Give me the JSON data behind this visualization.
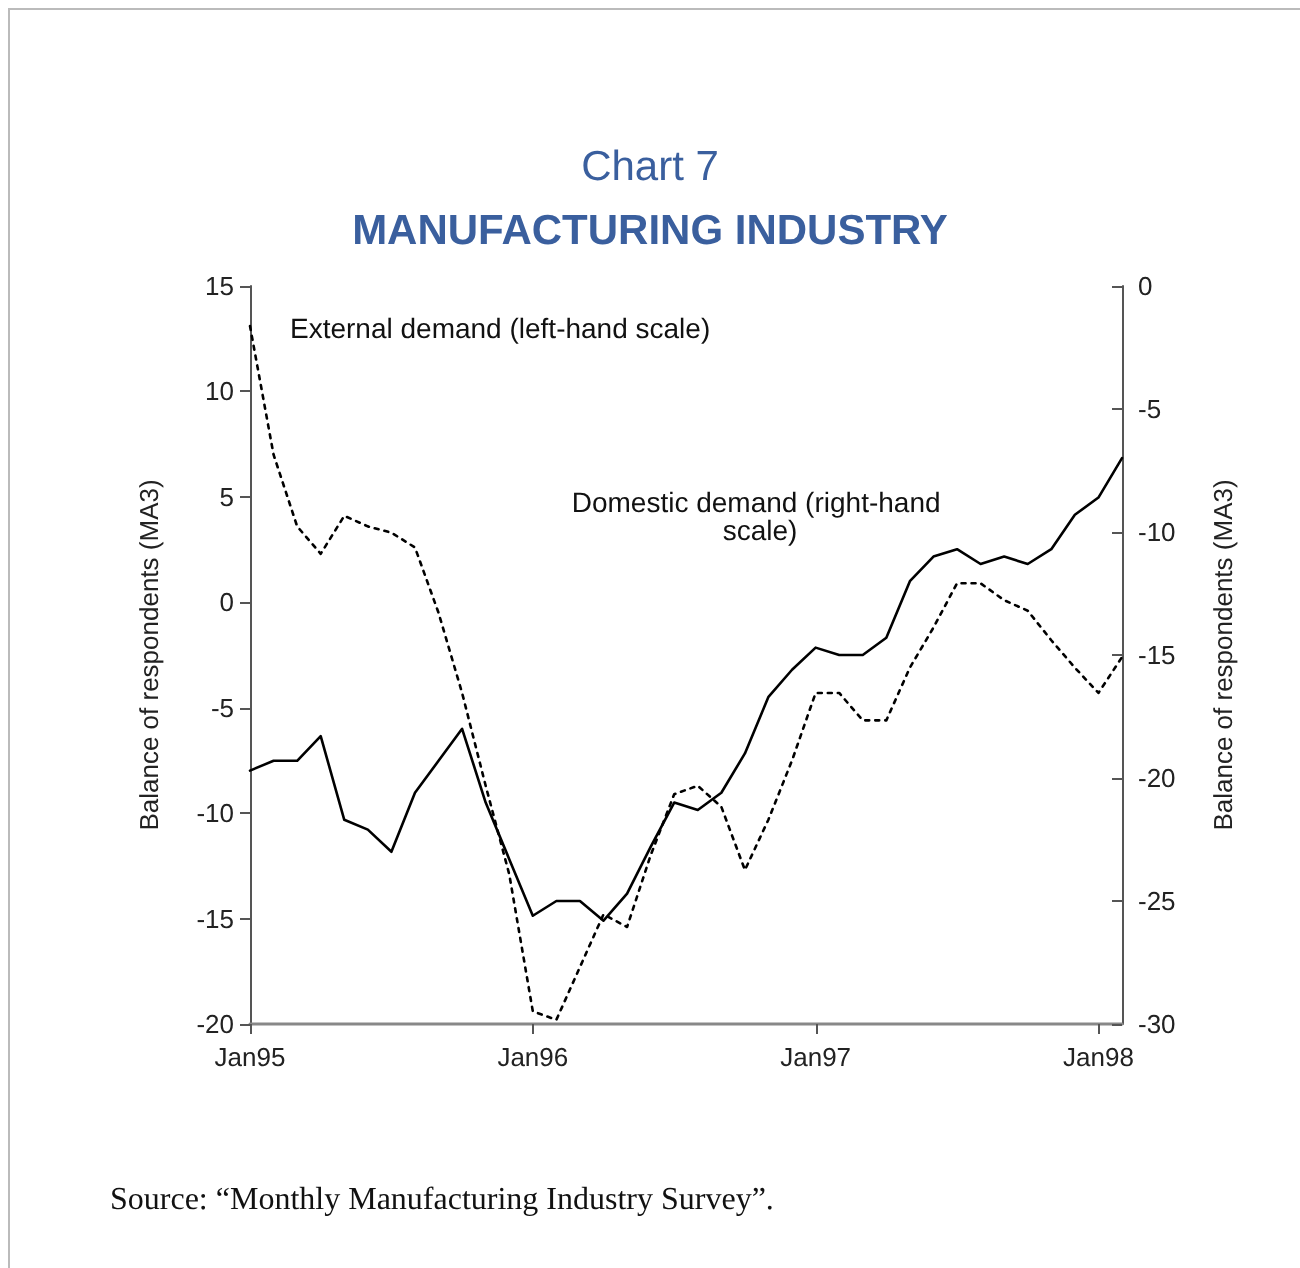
{
  "chart_data": {
    "type": "line",
    "title": "Chart 7",
    "subtitle": "MANUFACTURING INDUSTRY",
    "ylabel": "Balance of respondents (MA3)",
    "y2label": "Balance of respondents (MA3)",
    "categories": [
      "Jan95",
      null,
      null,
      null,
      null,
      null,
      null,
      null,
      null,
      null,
      null,
      null,
      "Jan96",
      null,
      null,
      null,
      null,
      null,
      null,
      null,
      null,
      null,
      null,
      null,
      "Jan97",
      null,
      null,
      null,
      null,
      null,
      null,
      null,
      null,
      null,
      null,
      null,
      "Jan98",
      null
    ],
    "series": [
      {
        "name": "External demand (left-hand scale)",
        "color": "#000000",
        "line_style": "dotted",
        "values": [
          13.1,
          7.0,
          3.6,
          2.3,
          4.1,
          3.6,
          3.3,
          2.6,
          -0.5,
          -4.3,
          -8.7,
          -12.9,
          -19.4,
          -19.8,
          -17.3,
          -14.8,
          -15.4,
          -12.0,
          -9.1,
          -8.7,
          -9.7,
          -12.7,
          -10.3,
          -7.5,
          -4.3,
          -4.3,
          -5.6,
          -5.6,
          -3.1,
          -1.2,
          0.9,
          0.9,
          0.1,
          -0.4,
          -1.8,
          -3.1,
          -4.3,
          -2.6
        ]
      },
      {
        "name": "Domestic demand (right-hand scale)",
        "color": "#000000",
        "line_style": "solid",
        "axis": "y2",
        "values": [
          -19.7,
          -19.3,
          -19.3,
          -18.3,
          -21.7,
          -22.1,
          -23.0,
          -20.6,
          -19.3,
          -18.0,
          -21.0,
          -23.3,
          -25.6,
          -25.0,
          -25.0,
          -25.8,
          -24.7,
          -22.8,
          -21.0,
          -21.3,
          -20.6,
          -19.0,
          -16.7,
          -15.6,
          -14.7,
          -15.0,
          -15.0,
          -14.3,
          -12.0,
          -11.0,
          -10.7,
          -11.3,
          -11.0,
          -11.3,
          -10.7,
          -9.3,
          -8.6,
          -7.0
        ]
      }
    ],
    "ylim": [
      -20,
      15
    ],
    "yticks": [
      -20,
      -15,
      -10,
      -5,
      0,
      5,
      10,
      15
    ],
    "y2lim": [
      -30,
      0
    ],
    "y2ticks": [
      -30,
      -25,
      -20,
      -15,
      -10,
      -5,
      0
    ],
    "grid": false,
    "legend": false,
    "marker": "none",
    "annotations": [
      "Source: “Monthly Manufacturing Industry Survey”."
    ]
  }
}
